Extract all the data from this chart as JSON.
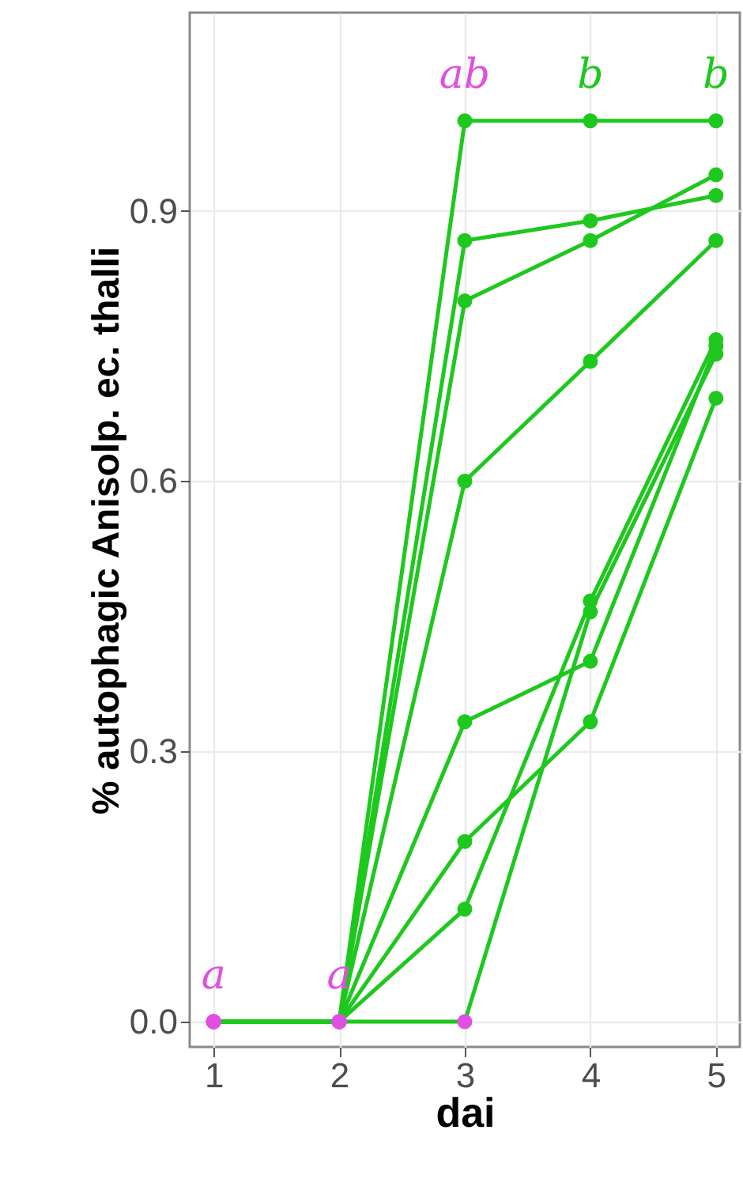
{
  "chart_data": {
    "type": "line",
    "xlabel": "dai",
    "ylabel": "% autophagic Anisolp. ec. thalli",
    "x": [
      1,
      2,
      3,
      4,
      5
    ],
    "xlim": [
      0.81,
      5.19
    ],
    "xticks": [
      1,
      2,
      3,
      4,
      5
    ],
    "ylim": [
      -0.028,
      1.12
    ],
    "yticks": [
      {
        "value": 0,
        "label": "0.0"
      },
      {
        "value": 0.3,
        "label": "0.3"
      },
      {
        "value": 0.6,
        "label": "0.6"
      },
      {
        "value": 0.9,
        "label": "0.9"
      }
    ],
    "grid": true,
    "marker": "circle",
    "line_style": "solid",
    "series": [
      {
        "color": "#1ec81e",
        "values": [
          0,
          0,
          1.0,
          1.0,
          1.0
        ],
        "colors": [
          "#e050e0",
          "#e050e0",
          "#1ec81e",
          "#1ec81e",
          "#1ec81e"
        ]
      },
      {
        "color": "#1ec81e",
        "values": [
          0,
          0,
          0.867,
          0.889,
          0.917
        ],
        "colors": [
          "#e050e0",
          "#e050e0",
          "#1ec81e",
          "#1ec81e",
          "#1ec81e"
        ]
      },
      {
        "color": "#1ec81e",
        "values": [
          0,
          0,
          0.8,
          0.867,
          0.94
        ],
        "colors": [
          "#e050e0",
          "#e050e0",
          "#1ec81e",
          "#1ec81e",
          "#1ec81e"
        ]
      },
      {
        "color": "#1ec81e",
        "values": [
          0,
          0,
          0.6,
          0.733,
          0.867
        ],
        "colors": [
          "#e050e0",
          "#e050e0",
          "#1ec81e",
          "#1ec81e",
          "#1ec81e"
        ]
      },
      {
        "color": "#1ec81e",
        "values": [
          0,
          0,
          0.333,
          0.4,
          0.75
        ],
        "colors": [
          "#e050e0",
          "#e050e0",
          "#1ec81e",
          "#1ec81e",
          "#1ec81e"
        ]
      },
      {
        "color": "#1ec81e",
        "values": [
          0,
          0,
          0.2,
          0.333,
          0.692
        ],
        "colors": [
          "#e050e0",
          "#e050e0",
          "#1ec81e",
          "#1ec81e",
          "#1ec81e"
        ]
      },
      {
        "color": "#1ec81e",
        "values": [
          0,
          0,
          0.125,
          0.467,
          0.757
        ],
        "colors": [
          "#e050e0",
          "#e050e0",
          "#1ec81e",
          "#1ec81e",
          "#1ec81e"
        ]
      },
      {
        "color": "#1ec81e",
        "values": [
          0,
          0,
          0,
          0.455,
          0.741
        ],
        "colors": [
          "#e050e0",
          "#e050e0",
          "#e050e0",
          "#1ec81e",
          "#1ec81e"
        ]
      }
    ],
    "annotations": [
      "a",
      "a",
      "ab",
      "b",
      "b"
    ]
  }
}
